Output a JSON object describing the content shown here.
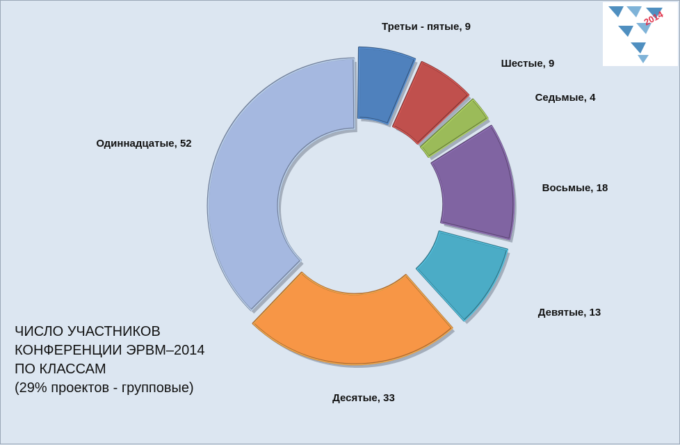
{
  "chart_data": {
    "type": "donut",
    "title_lines": [
      "ЧИСЛО УЧАСТНИКОВ",
      "КОНФЕРЕНЦИИ ЭРВМ–2014",
      "ПО КЛАССАМ",
      "(29% проектов - групповые)"
    ],
    "slices": [
      {
        "name": "Третьи - пятые",
        "value": 9,
        "label": "Третьи - пятые, 9",
        "color": "#4f81bd",
        "exploded": true
      },
      {
        "name": "Шестые",
        "value": 9,
        "label": "Шестые, 9",
        "color": "#c0504d",
        "exploded": true
      },
      {
        "name": "Седьмые",
        "value": 4,
        "label": "Седьмые, 4",
        "color": "#9bbb59",
        "exploded": true
      },
      {
        "name": "Восьмые",
        "value": 18,
        "label": "Восьмые, 18",
        "color": "#8064a2",
        "exploded": true
      },
      {
        "name": "Девятые",
        "value": 13,
        "label": "Девятые, 13",
        "color": "#4bacc6",
        "exploded": true
      },
      {
        "name": "Десятые",
        "value": 33,
        "label": "Десятые, 33",
        "color": "#f79646",
        "exploded": true
      },
      {
        "name": "Одиннадцатые",
        "value": 52,
        "label": "Одиннадцатые, 52",
        "color": "#a5b8e0",
        "exploded": false
      }
    ]
  },
  "logo": {
    "year_text": "2014",
    "colors": [
      "#4f8fc0",
      "#7fb3d8",
      "#e0324a"
    ]
  }
}
